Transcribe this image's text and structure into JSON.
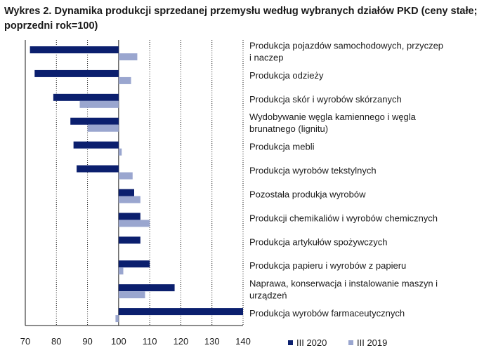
{
  "title": "Wykres 2. Dynamika produkcji sprzedanej przemysłu według wybranych działów PKD (ceny stałe; poprzedni rok=100)",
  "chart_data": {
    "type": "bar",
    "orientation": "horizontal",
    "title": "Wykres 2. Dynamika produkcji sprzedanej przemysłu według wybranych działów PKD (ceny stałe; poprzedni rok=100)",
    "xlabel": "",
    "ylabel": "",
    "xlim": [
      70,
      140
    ],
    "xticks": [
      70,
      80,
      90,
      100,
      110,
      120,
      130,
      140
    ],
    "baseline": 100,
    "grid": "vertical dashed",
    "legend_position": "bottom-right",
    "colors": {
      "III 2020": "#0b1f6e",
      "III 2019": "#9aa6cf",
      "grid": "#1a1a1a"
    },
    "categories": [
      [
        "Produkcja pojazdów samochodowych, przyczep",
        "i naczep"
      ],
      [
        "Produkcja odzieży"
      ],
      [
        "Produkcja skór i wyrobów skórzanych"
      ],
      [
        "Wydobywanie węgla kamiennego i węgla",
        "brunatnego (lignitu)"
      ],
      [
        "Produkcja mebli"
      ],
      [
        "Produkcja wyrobów tekstylnych"
      ],
      [
        "Pozostała produkja wyrobów"
      ],
      [
        "Produkcji chemikaliów i wyrobów chemicznych"
      ],
      [
        "Produkcja artykułów spożywczych"
      ],
      [
        "Produkcja papieru i wyrobów z papieru"
      ],
      [
        "Naprawa, konserwacja i instalowanie maszyn i",
        "urządzeń"
      ],
      [
        "Produkcja wyrobów farmaceutycznych"
      ]
    ],
    "series": [
      {
        "name": "III 2020",
        "values": [
          71.5,
          73,
          79,
          84.5,
          85.5,
          86.5,
          105,
          107,
          107,
          110,
          118,
          140
        ]
      },
      {
        "name": "III 2019",
        "values": [
          106,
          104,
          87.5,
          90,
          101,
          104.5,
          107,
          110,
          null,
          101.5,
          108.5,
          99
        ]
      }
    ]
  }
}
